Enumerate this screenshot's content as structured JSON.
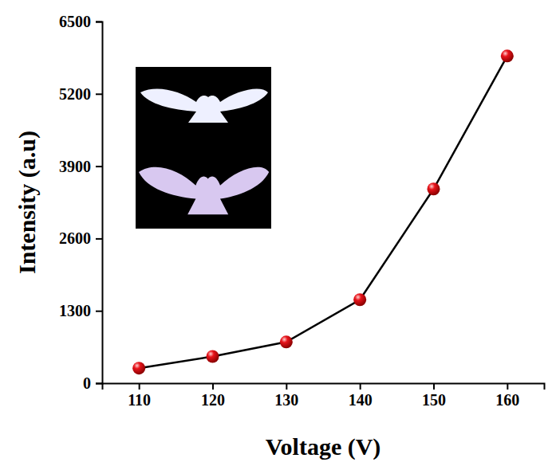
{
  "chart_data": {
    "type": "line",
    "x_label": "Voltage (V)",
    "y_label": "Intensity (a.u)",
    "x": [
      110,
      120,
      130,
      140,
      150,
      160
    ],
    "values": [
      270,
      480,
      740,
      1500,
      3490,
      5880
    ],
    "color": "#e8141b",
    "marker": "circle",
    "line_style": "solid",
    "xlim": [
      105,
      165
    ],
    "xticks": [
      110,
      120,
      130,
      140,
      150,
      160
    ],
    "ylim": [
      0,
      6500
    ],
    "yticks": [
      0,
      1300,
      2600,
      3900,
      5200,
      6500
    ],
    "grid": false
  }
}
